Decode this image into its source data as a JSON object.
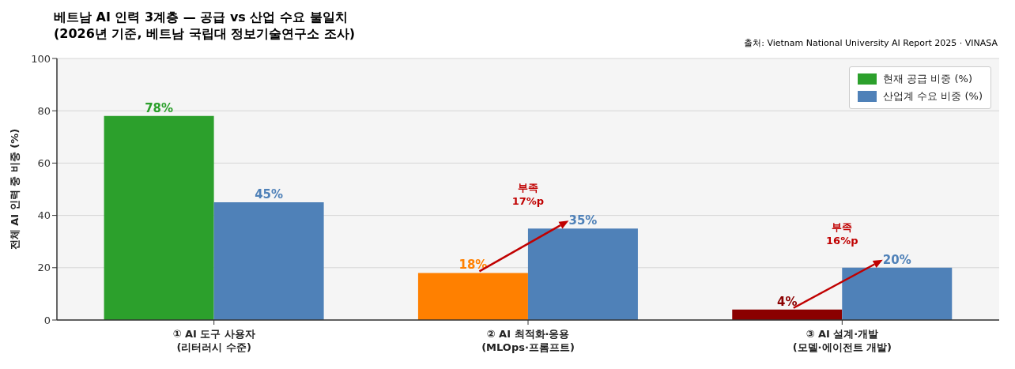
{
  "chart_data": {
    "type": "bar",
    "title": "베트남 AI 인력 3계층 — 공급 vs 산업 수요 불일치",
    "subtitle": "(2026년 기준, 베트남 국립대 정보기술연구소 조사)",
    "ylabel": "전체 AI 인력 중 비중 (%)",
    "categories": [
      "① AI 도구 사용자\n(리터러시 수준)",
      "② AI 최적화·응용\n(MLOps·프롬프트)",
      "③ AI 설계·개발\n(모델·에이전트 개발)"
    ],
    "series": [
      {
        "name": "현재 공급 비중 (%)",
        "color": "#2ca02c",
        "colors": [
          "#2ca02c",
          "#ff8000",
          "#8b0000"
        ],
        "values": [
          78,
          18,
          4
        ],
        "value_labels": [
          "78%",
          "18%",
          "4%"
        ]
      },
      {
        "name": "산업계 수요 비중 (%)",
        "color": "#4f81b8",
        "values": [
          45,
          35,
          20
        ],
        "value_labels": [
          "45%",
          "35%",
          "20%"
        ]
      }
    ],
    "ylim": [
      0,
      100
    ],
    "yticks": [
      0,
      20,
      40,
      60,
      80,
      100
    ],
    "grid": "y",
    "legend": "top right",
    "annotations": [
      {
        "text": "부족\n17%p",
        "x": "② AI 최적화·응용\n(MLOps·프롬프트)",
        "y": 35
      },
      {
        "text": "부족\n16%p",
        "x": "③ AI 설계·개발\n(모델·에이전트 개발)",
        "y": 20
      },
      "출처: Vietnam National University AI Report 2025 · VINASA"
    ]
  }
}
